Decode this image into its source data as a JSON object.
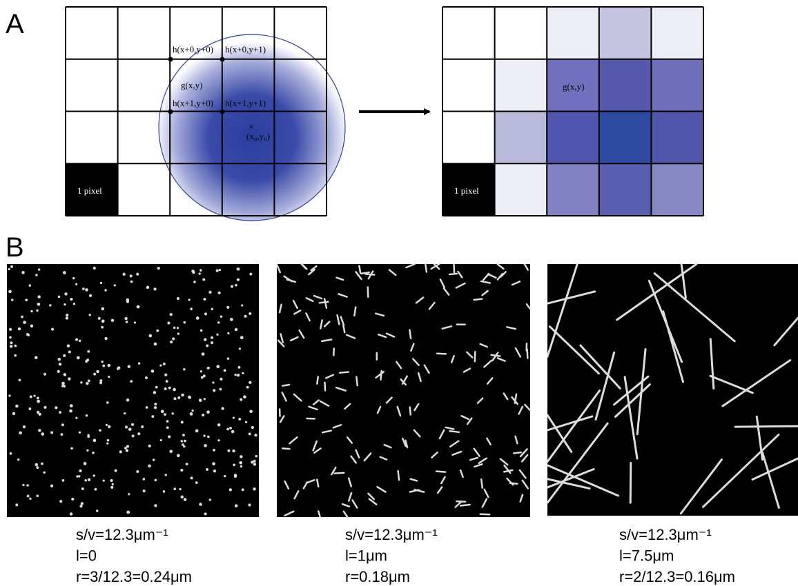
{
  "panel_a": {
    "label": "A",
    "left_grid": {
      "labels": [
        "h(x+0,y+0)",
        "h(x+0,y+1)",
        "g(x,y)",
        "h(x+1,y+0)",
        "h(x+1,y+1)"
      ],
      "center_mark": "×",
      "center_label": "(x₀,y₀)",
      "pixel_label": "1 pixel"
    },
    "right_grid": {
      "g_label": "g(x,y)",
      "pixel_label": "1 pixel"
    }
  },
  "panel_b": {
    "label": "B",
    "images": [
      {
        "caption": [
          "s/v=12.3μm⁻¹",
          "l=0",
          "r=3/12.3=0.24μm"
        ]
      },
      {
        "caption": [
          "s/v=12.3μm⁻¹",
          "l=1μm",
          "r=0.18μm"
        ]
      },
      {
        "caption": [
          "s/v=12.3μm⁻¹",
          "l=7.5μm",
          "r=2/12.3=0.16μm"
        ]
      }
    ]
  }
}
